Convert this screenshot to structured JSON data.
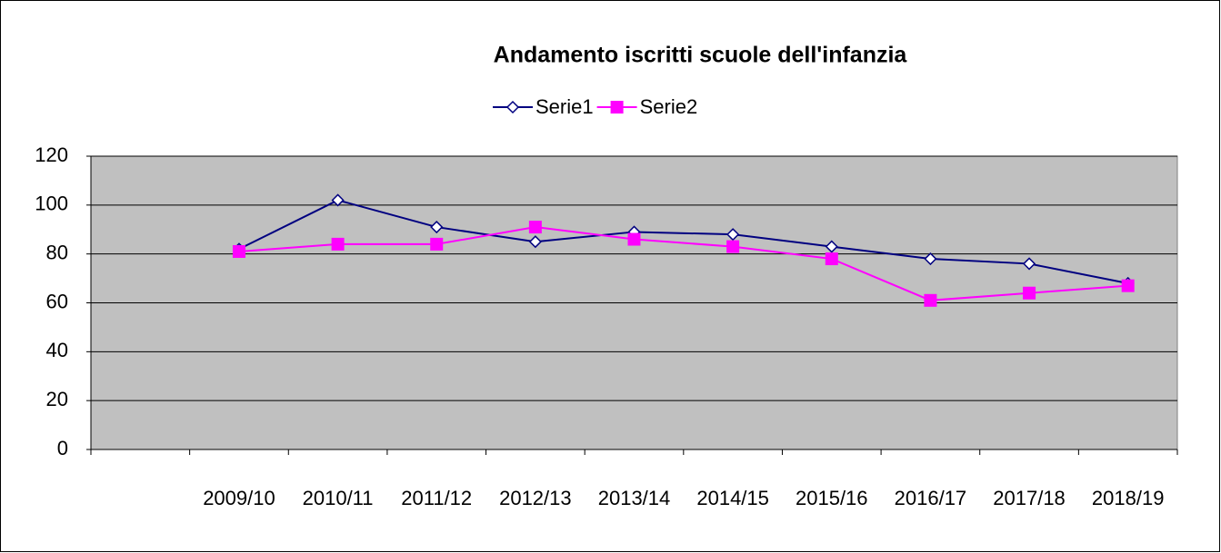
{
  "chart_data": {
    "type": "line",
    "title": "Andamento iscritti scuole dell'infanzia",
    "categories": [
      null,
      "2009/10",
      "2010/11",
      "2011/12",
      "2012/13",
      "2013/14",
      "2014/15",
      "2015/16",
      "2016/17",
      "2017/18",
      "2018/19"
    ],
    "series": [
      {
        "name": "Serie1",
        "color": "#000080",
        "marker": "diamond",
        "values": [
          null,
          82,
          102,
          91,
          85,
          89,
          88,
          83,
          78,
          76,
          68
        ]
      },
      {
        "name": "Serie2",
        "color": "#ff00ff",
        "marker": "square",
        "values": [
          null,
          81,
          84,
          84,
          91,
          86,
          83,
          78,
          61,
          64,
          67
        ]
      }
    ],
    "ylim": [
      0,
      120
    ],
    "yticks": [
      0,
      20,
      40,
      60,
      80,
      100,
      120
    ],
    "grid": true,
    "legend": "top"
  }
}
